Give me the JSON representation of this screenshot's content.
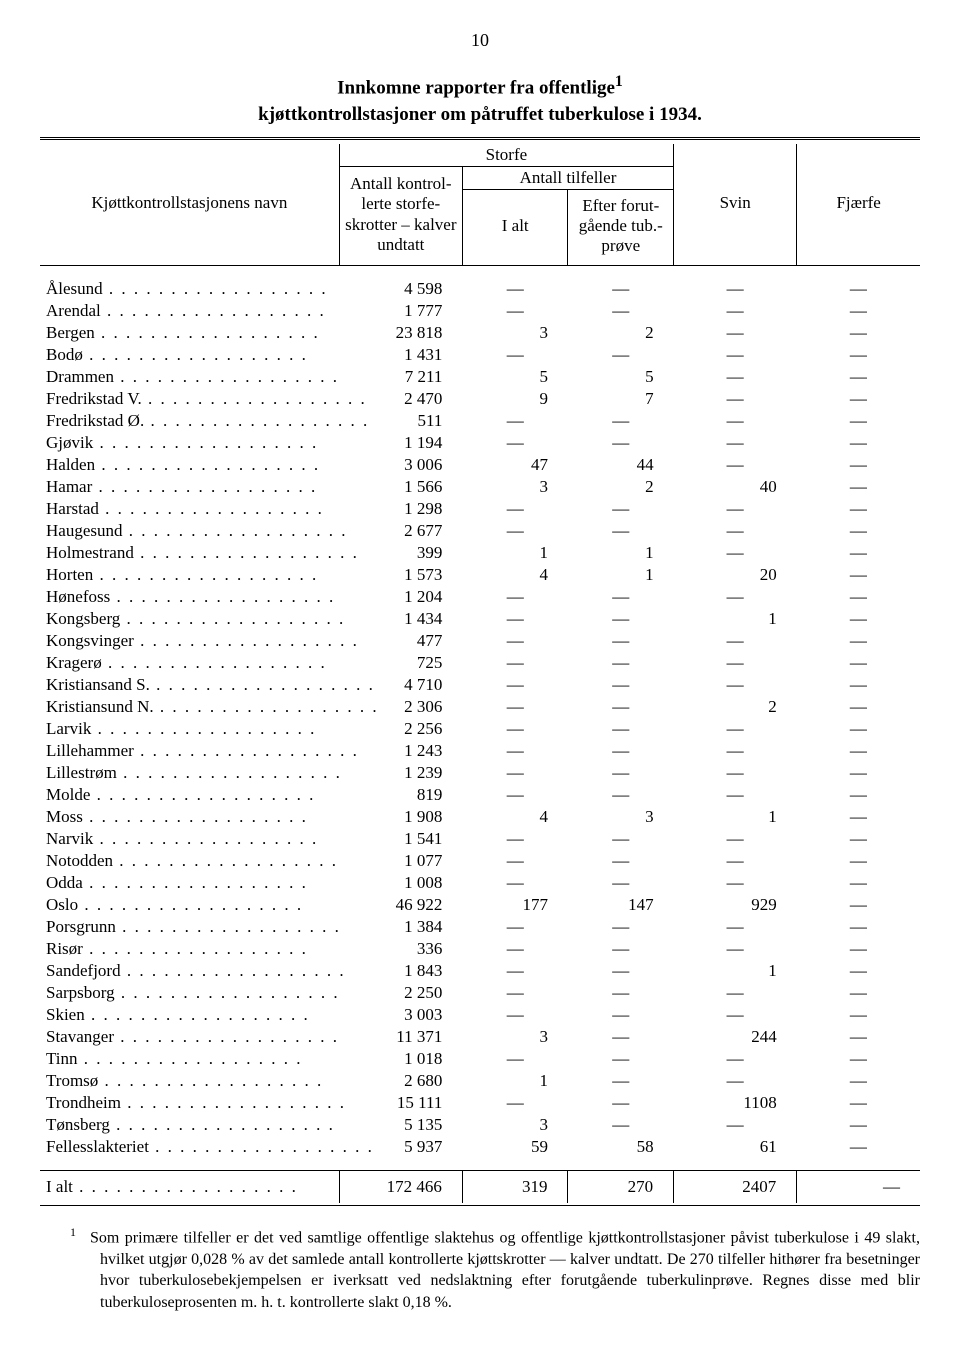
{
  "page_number": "10",
  "title_line1": "Innkomne rapporter fra offentlige",
  "title_sup": "1",
  "title_line2": "kjøttkontrollstasjoner om påtruffet tuberkulose i 1934.",
  "headers": {
    "row_label": "Kjøttkontrollstasjonens navn",
    "storfe": "Storfe",
    "antall": "Antall kontrol- lerte storfe- skrotter – kalver undtatt",
    "antall_tilfeller": "Antall tilfeller",
    "i_alt": "I alt",
    "efter": "Efter forut- gående tub.- prøve",
    "svin": "Svin",
    "fjaerfe": "Fjærfe"
  },
  "rows": [
    {
      "name": "Ålesund",
      "c1": "4 598",
      "c2": "—",
      "c3": "—",
      "c4": "—",
      "c5": "—"
    },
    {
      "name": "Arendal",
      "c1": "1 777",
      "c2": "—",
      "c3": "—",
      "c4": "—",
      "c5": "—"
    },
    {
      "name": "Bergen",
      "c1": "23 818",
      "c2": "3",
      "c3": "2",
      "c4": "—",
      "c5": "—"
    },
    {
      "name": "Bodø",
      "c1": "1 431",
      "c2": "—",
      "c3": "—",
      "c4": "—",
      "c5": "—"
    },
    {
      "name": "Drammen",
      "c1": "7 211",
      "c2": "5",
      "c3": "5",
      "c4": "—",
      "c5": "—"
    },
    {
      "name": "Fredrikstad V.",
      "c1": "2 470",
      "c2": "9",
      "c3": "7",
      "c4": "—",
      "c5": "—"
    },
    {
      "name": "Fredrikstad Ø.",
      "c1": "511",
      "c2": "—",
      "c3": "—",
      "c4": "—",
      "c5": "—"
    },
    {
      "name": "Gjøvik",
      "c1": "1 194",
      "c2": "—",
      "c3": "—",
      "c4": "—",
      "c5": "—"
    },
    {
      "name": "Halden",
      "c1": "3 006",
      "c2": "47",
      "c3": "44",
      "c4": "—",
      "c5": "—"
    },
    {
      "name": "Hamar",
      "c1": "1 566",
      "c2": "3",
      "c3": "2",
      "c4": "40",
      "c5": "—"
    },
    {
      "name": "Harstad",
      "c1": "1 298",
      "c2": "—",
      "c3": "—",
      "c4": "—",
      "c5": "—"
    },
    {
      "name": "Haugesund",
      "c1": "2 677",
      "c2": "—",
      "c3": "—",
      "c4": "—",
      "c5": "—"
    },
    {
      "name": "Holmestrand",
      "c1": "399",
      "c2": "1",
      "c3": "1",
      "c4": "—",
      "c5": "—"
    },
    {
      "name": "Horten",
      "c1": "1 573",
      "c2": "4",
      "c3": "1",
      "c4": "20",
      "c5": "—"
    },
    {
      "name": "Hønefoss",
      "c1": "1 204",
      "c2": "—",
      "c3": "—",
      "c4": "—",
      "c5": "—"
    },
    {
      "name": "Kongsberg",
      "c1": "1 434",
      "c2": "—",
      "c3": "—",
      "c4": "1",
      "c5": "—"
    },
    {
      "name": "Kongsvinger",
      "c1": "477",
      "c2": "—",
      "c3": "—",
      "c4": "—",
      "c5": "—"
    },
    {
      "name": "Kragerø",
      "c1": "725",
      "c2": "—",
      "c3": "—",
      "c4": "—",
      "c5": "—"
    },
    {
      "name": "Kristiansand S.",
      "c1": "4 710",
      "c2": "—",
      "c3": "—",
      "c4": "—",
      "c5": "—"
    },
    {
      "name": "Kristiansund N.",
      "c1": "2 306",
      "c2": "—",
      "c3": "—",
      "c4": "2",
      "c5": "—"
    },
    {
      "name": "Larvik",
      "c1": "2 256",
      "c2": "—",
      "c3": "—",
      "c4": "—",
      "c5": "—"
    },
    {
      "name": "Lillehammer",
      "c1": "1 243",
      "c2": "—",
      "c3": "—",
      "c4": "—",
      "c5": "—"
    },
    {
      "name": "Lillestrøm",
      "c1": "1 239",
      "c2": "—",
      "c3": "—",
      "c4": "—",
      "c5": "—"
    },
    {
      "name": "Molde",
      "c1": "819",
      "c2": "—",
      "c3": "—",
      "c4": "—",
      "c5": "—"
    },
    {
      "name": "Moss",
      "c1": "1 908",
      "c2": "4",
      "c3": "3",
      "c4": "1",
      "c5": "—"
    },
    {
      "name": "Narvik",
      "c1": "1 541",
      "c2": "—",
      "c3": "—",
      "c4": "—",
      "c5": "—"
    },
    {
      "name": "Notodden",
      "c1": "1 077",
      "c2": "—",
      "c3": "—",
      "c4": "—",
      "c5": "—"
    },
    {
      "name": "Odda",
      "c1": "1 008",
      "c2": "—",
      "c3": "—",
      "c4": "—",
      "c5": "—"
    },
    {
      "name": "Oslo",
      "c1": "46 922",
      "c2": "177",
      "c3": "147",
      "c4": "929",
      "c5": "—"
    },
    {
      "name": "Porsgrunn",
      "c1": "1 384",
      "c2": "—",
      "c3": "—",
      "c4": "—",
      "c5": "—"
    },
    {
      "name": "Risør",
      "c1": "336",
      "c2": "—",
      "c3": "—",
      "c4": "—",
      "c5": "—"
    },
    {
      "name": "Sandefjord",
      "c1": "1 843",
      "c2": "—",
      "c3": "—",
      "c4": "1",
      "c5": "—"
    },
    {
      "name": "Sarpsborg",
      "c1": "2 250",
      "c2": "—",
      "c3": "—",
      "c4": "—",
      "c5": "—"
    },
    {
      "name": "Skien",
      "c1": "3 003",
      "c2": "—",
      "c3": "—",
      "c4": "—",
      "c5": "—"
    },
    {
      "name": "Stavanger",
      "c1": "11 371",
      "c2": "3",
      "c3": "—",
      "c4": "244",
      "c5": "—"
    },
    {
      "name": "Tinn",
      "c1": "1 018",
      "c2": "—",
      "c3": "—",
      "c4": "—",
      "c5": "—"
    },
    {
      "name": "Tromsø",
      "c1": "2 680",
      "c2": "1",
      "c3": "—",
      "c4": "—",
      "c5": "—"
    },
    {
      "name": "Trondheim",
      "c1": "15 111",
      "c2": "—",
      "c3": "—",
      "c4": "1108",
      "c5": "—"
    },
    {
      "name": "Tønsberg",
      "c1": "5 135",
      "c2": "3",
      "c3": "—",
      "c4": "—",
      "c5": "—"
    },
    {
      "name": "Fellesslakteriet",
      "c1": "5 937",
      "c2": "59",
      "c3": "58",
      "c4": "61",
      "c5": "—"
    }
  ],
  "total": {
    "name": "I alt",
    "c1": "172 466",
    "c2": "319",
    "c3": "270",
    "c4": "2407",
    "c5": "—"
  },
  "footnote_marker": "1",
  "footnote_text": "Som primære tilfeller er det ved samtlige offentlige slaktehus og offentlige kjøttkontrollstasjoner påvist tuberkulose i 49 slakt, hvilket utgjør 0,028 % av det samlede antall kontrollerte kjøttskrotter — kalver undtatt. De 270 tilfeller hithører fra besetninger hvor tuberkulosebekjempelsen er iverksatt ved nedslaktning efter forutgående tuberkulinprøve. Regnes disse med blir tuberkuloseprosenten m. h. t. kontrollerte slakt 0,18 %."
}
